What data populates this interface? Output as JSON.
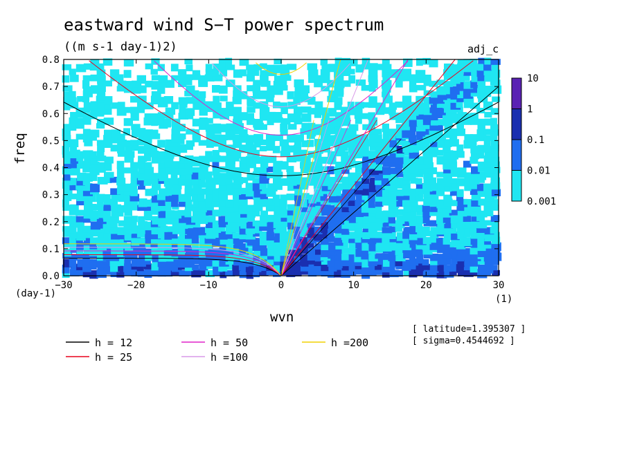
{
  "header": {
    "title": "eastward wind S−T power spectrum",
    "subtitle": "((m s-1 day-1)2)",
    "tag": "adj_c"
  },
  "chart_data": {
    "type": "heatmap",
    "title": "eastward wind S−T power spectrum",
    "units": "((m s-1 day-1)2)",
    "xlabel": "wvn",
    "ylabel": "freq",
    "x_unit": "(1)",
    "y_unit": "(day-1)",
    "xlim": [
      -30,
      30
    ],
    "ylim": [
      0,
      0.8
    ],
    "x_ticks": [
      -30,
      -20,
      -10,
      0,
      10,
      20,
      30
    ],
    "x_tick_labels": [
      "−30",
      "−20",
      "−10",
      "0",
      "10",
      "20",
      "30"
    ],
    "y_ticks": [
      0,
      0.1,
      0.2,
      0.3,
      0.4,
      0.5,
      0.6,
      0.7,
      0.8
    ],
    "y_tick_labels": [
      "0.0",
      "0.1",
      "0.2",
      "0.3",
      "0.4",
      "0.5",
      "0.6",
      "0.7",
      "0.8"
    ],
    "colorbar": {
      "labels": [
        "10",
        "1",
        "0.1",
        "0.01",
        "0.001"
      ],
      "levels": [
        0.001,
        0.01,
        0.1,
        1,
        10
      ],
      "colors": [
        "#5a22b4",
        "#1a2fb0",
        "#1f6ef0",
        "#1fe6f2"
      ]
    },
    "dispersion_curves": [
      {
        "name": "h = 12",
        "h": 12,
        "color": "#000000",
        "legend_label": "h = 12"
      },
      {
        "name": "h = 25",
        "h": 25,
        "color": "#e8001c",
        "legend_label": "h = 25"
      },
      {
        "name": "h = 50",
        "h": 50,
        "color": "#e020c8",
        "legend_label": "h = 50"
      },
      {
        "name": "h = 100",
        "h": 100,
        "color": "#d898e8",
        "legend_label": "h =100"
      },
      {
        "name": "h = 200",
        "h": 200,
        "color": "#f0d000",
        "legend_label": "h =200"
      }
    ],
    "kelvin_asymptote": {
      "h12": {
        "x": [
          0,
          30
        ],
        "y": [
          0,
          0.7
        ]
      },
      "h25": {
        "x": [
          0,
          24
        ],
        "y": [
          0,
          0.8
        ]
      },
      "h50": {
        "x": [
          0,
          17.5
        ],
        "y": [
          0,
          0.8
        ]
      },
      "h100": {
        "x": [
          0,
          12
        ],
        "y": [
          0,
          0.8
        ]
      },
      "h200": {
        "x": [
          0,
          8.2
        ],
        "y": [
          0,
          0.8
        ]
      }
    },
    "igw_minimum_freq": {
      "h12": 0.37,
      "h25": 0.44,
      "h50": 0.52,
      "h100": 0.625,
      "h200": 0.745
    },
    "rossby_max_freq": {
      "h12": 0.065,
      "h25": 0.078,
      "h50": 0.092,
      "h100": 0.105,
      "h200": 0.118
    }
  },
  "annotations": {
    "latitude": "[ latitude=1.395307 ]",
    "sigma": "[ sigma=0.4544692 ]"
  }
}
